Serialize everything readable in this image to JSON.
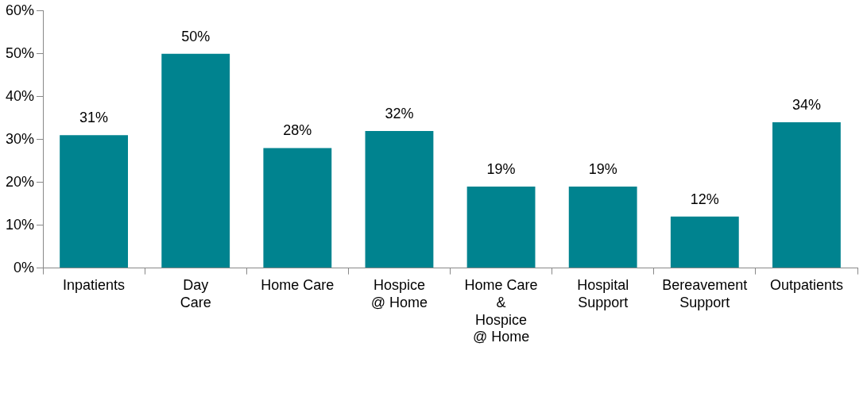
{
  "chart_data": {
    "type": "bar",
    "categories": [
      "Inpatients",
      "Day\nCare",
      "Home Care",
      "Hospice\n@ Home",
      "Home Care\n&\nHospice\n@ Home",
      "Hospital\nSupport",
      "Bereavement\nSupport",
      "Outpatients"
    ],
    "values": [
      31,
      50,
      28,
      32,
      19,
      19,
      12,
      34
    ],
    "color": "#00838f",
    "ylim": [
      0,
      60
    ],
    "yticks": [
      {
        "value": 0,
        "label": "0%"
      },
      {
        "value": 10,
        "label": "10%"
      },
      {
        "value": 20,
        "label": "20%"
      },
      {
        "value": 30,
        "label": "30%"
      },
      {
        "value": 40,
        "label": "40%"
      },
      {
        "value": 50,
        "label": "50%"
      },
      {
        "value": 60,
        "label": "60%"
      }
    ],
    "value_labels": [
      "31%",
      "50%",
      "28%",
      "32%",
      "19%",
      "19%",
      "12%",
      "34%"
    ],
    "grid": false,
    "legend": false
  }
}
